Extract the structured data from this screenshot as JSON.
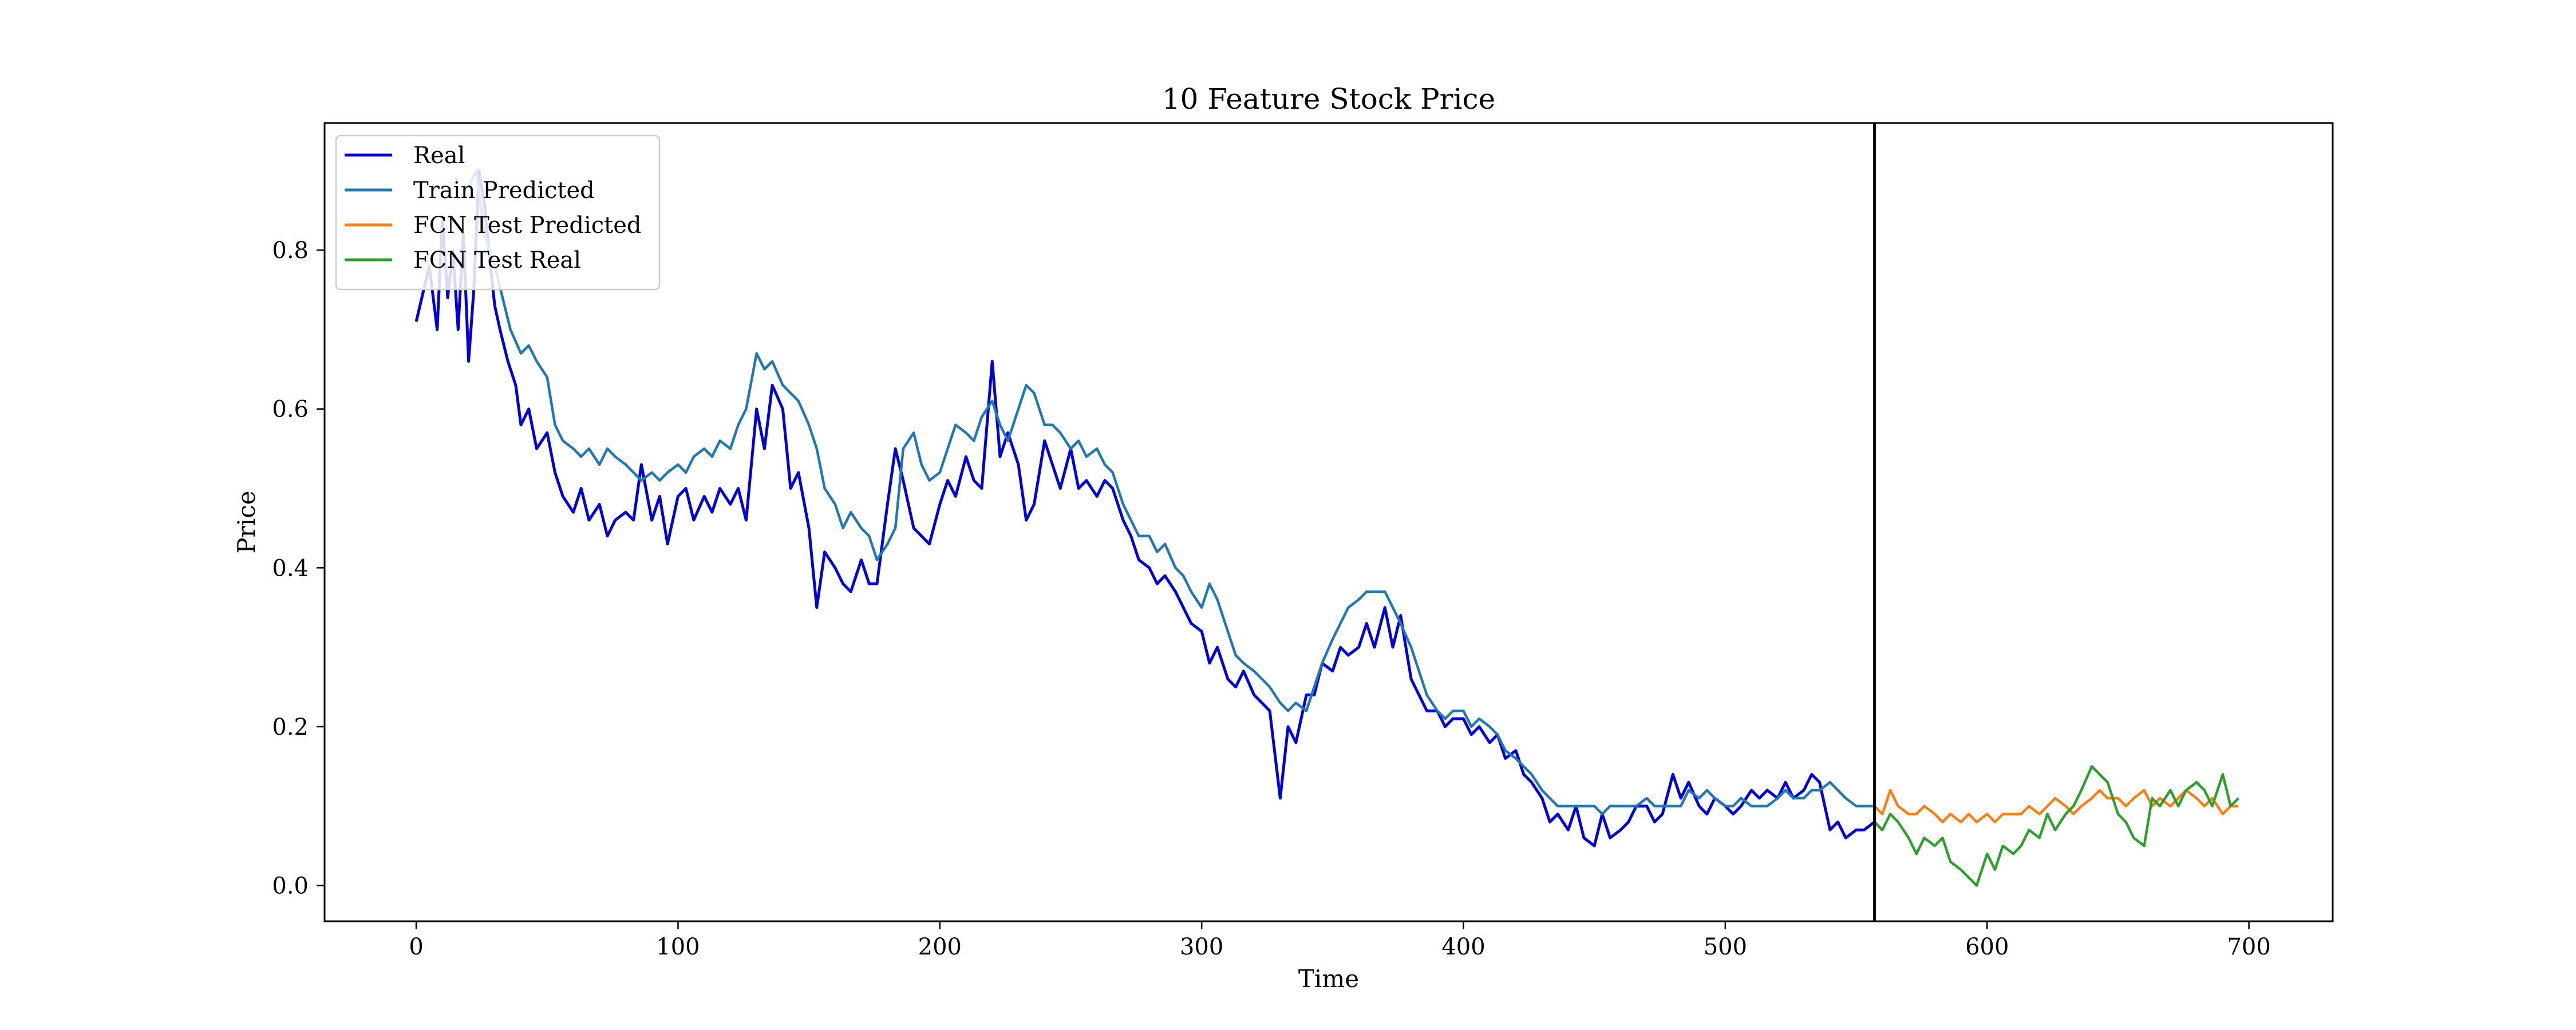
{
  "chart_data": {
    "type": "line",
    "title": "10 Feature Stock Price",
    "xlabel": "Time",
    "ylabel": "Price",
    "xlim": [
      -35,
      732
    ],
    "ylim": [
      -0.045,
      0.96
    ],
    "xticks": [
      0,
      100,
      200,
      300,
      400,
      500,
      600,
      700
    ],
    "yticks": [
      0.0,
      0.2,
      0.4,
      0.6,
      0.8
    ],
    "ytick_labels": [
      "0.0",
      "0.2",
      "0.4",
      "0.6",
      "0.8"
    ],
    "vline_x": 557,
    "legend": {
      "position": "top-left"
    },
    "grid": false,
    "series": [
      {
        "name": "Real",
        "color": "#0000dd",
        "x": [
          0,
          5,
          8,
          10,
          12,
          14,
          16,
          18,
          20,
          22,
          24,
          26,
          28,
          30,
          32,
          35,
          38,
          40,
          43,
          46,
          50,
          53,
          56,
          60,
          63,
          66,
          70,
          73,
          76,
          80,
          83,
          86,
          90,
          93,
          96,
          100,
          103,
          106,
          110,
          113,
          116,
          120,
          123,
          126,
          130,
          133,
          136,
          140,
          143,
          146,
          150,
          153,
          156,
          160,
          163,
          166,
          170,
          173,
          176,
          180,
          183,
          186,
          190,
          193,
          196,
          200,
          203,
          206,
          210,
          213,
          216,
          220,
          223,
          226,
          230,
          233,
          236,
          240,
          243,
          246,
          250,
          253,
          256,
          260,
          263,
          266,
          270,
          273,
          276,
          280,
          283,
          286,
          290,
          293,
          296,
          300,
          303,
          306,
          310,
          313,
          316,
          320,
          323,
          326,
          330,
          333,
          336,
          340,
          343,
          346,
          350,
          353,
          356,
          360,
          363,
          366,
          370,
          373,
          376,
          380,
          383,
          386,
          390,
          393,
          396,
          400,
          403,
          406,
          410,
          413,
          416,
          420,
          423,
          426,
          430,
          433,
          436,
          440,
          443,
          446,
          450,
          453,
          456,
          460,
          463,
          466,
          470,
          473,
          476,
          480,
          483,
          486,
          490,
          493,
          496,
          500,
          503,
          506,
          510,
          513,
          516,
          520,
          523,
          526,
          530,
          533,
          536,
          540,
          543,
          546,
          550,
          553,
          557
        ],
        "y": [
          0.71,
          0.78,
          0.7,
          0.84,
          0.74,
          0.8,
          0.7,
          0.82,
          0.66,
          0.75,
          0.9,
          0.86,
          0.79,
          0.73,
          0.7,
          0.66,
          0.63,
          0.58,
          0.6,
          0.55,
          0.57,
          0.52,
          0.49,
          0.47,
          0.5,
          0.46,
          0.48,
          0.44,
          0.46,
          0.47,
          0.46,
          0.53,
          0.46,
          0.49,
          0.43,
          0.49,
          0.5,
          0.46,
          0.49,
          0.47,
          0.5,
          0.48,
          0.5,
          0.46,
          0.6,
          0.55,
          0.63,
          0.6,
          0.5,
          0.52,
          0.45,
          0.35,
          0.42,
          0.4,
          0.38,
          0.37,
          0.41,
          0.38,
          0.38,
          0.48,
          0.55,
          0.51,
          0.45,
          0.44,
          0.43,
          0.48,
          0.51,
          0.49,
          0.54,
          0.51,
          0.5,
          0.66,
          0.54,
          0.57,
          0.53,
          0.46,
          0.48,
          0.56,
          0.53,
          0.5,
          0.55,
          0.5,
          0.51,
          0.49,
          0.51,
          0.5,
          0.46,
          0.44,
          0.41,
          0.4,
          0.38,
          0.39,
          0.37,
          0.35,
          0.33,
          0.32,
          0.28,
          0.3,
          0.26,
          0.25,
          0.27,
          0.24,
          0.23,
          0.22,
          0.11,
          0.2,
          0.18,
          0.24,
          0.24,
          0.28,
          0.27,
          0.3,
          0.29,
          0.3,
          0.33,
          0.3,
          0.35,
          0.3,
          0.34,
          0.26,
          0.24,
          0.22,
          0.22,
          0.2,
          0.21,
          0.21,
          0.19,
          0.2,
          0.18,
          0.19,
          0.16,
          0.17,
          0.14,
          0.13,
          0.11,
          0.08,
          0.09,
          0.07,
          0.1,
          0.06,
          0.05,
          0.09,
          0.06,
          0.07,
          0.08,
          0.1,
          0.1,
          0.08,
          0.09,
          0.14,
          0.11,
          0.13,
          0.1,
          0.09,
          0.11,
          0.1,
          0.09,
          0.1,
          0.12,
          0.11,
          0.12,
          0.11,
          0.13,
          0.11,
          0.12,
          0.14,
          0.13,
          0.07,
          0.08,
          0.06,
          0.07,
          0.07,
          0.08
        ]
      },
      {
        "name": "Train Predicted",
        "color": "#1f77b4",
        "x": [
          20,
          23,
          26,
          30,
          33,
          36,
          40,
          43,
          46,
          50,
          53,
          56,
          60,
          63,
          66,
          70,
          73,
          76,
          80,
          83,
          86,
          90,
          93,
          96,
          100,
          103,
          106,
          110,
          113,
          116,
          120,
          123,
          126,
          130,
          133,
          136,
          140,
          143,
          146,
          150,
          153,
          156,
          160,
          163,
          166,
          170,
          173,
          176,
          180,
          183,
          186,
          190,
          193,
          196,
          200,
          203,
          206,
          210,
          213,
          216,
          220,
          223,
          226,
          230,
          233,
          236,
          240,
          243,
          246,
          250,
          253,
          256,
          260,
          263,
          266,
          270,
          273,
          276,
          280,
          283,
          286,
          290,
          293,
          296,
          300,
          303,
          306,
          310,
          313,
          316,
          320,
          323,
          326,
          330,
          333,
          336,
          340,
          343,
          346,
          350,
          353,
          356,
          360,
          363,
          366,
          370,
          373,
          376,
          380,
          383,
          386,
          390,
          393,
          396,
          400,
          403,
          406,
          410,
          413,
          416,
          420,
          423,
          426,
          430,
          433,
          436,
          440,
          443,
          446,
          450,
          453,
          456,
          460,
          463,
          466,
          470,
          473,
          476,
          480,
          483,
          486,
          490,
          493,
          496,
          500,
          503,
          506,
          510,
          513,
          516,
          520,
          523,
          526,
          530,
          533,
          536,
          540,
          543,
          546,
          550,
          553,
          557
        ],
        "y": [
          0.88,
          0.9,
          0.82,
          0.78,
          0.74,
          0.7,
          0.67,
          0.68,
          0.66,
          0.64,
          0.58,
          0.56,
          0.55,
          0.54,
          0.55,
          0.53,
          0.55,
          0.54,
          0.53,
          0.52,
          0.51,
          0.52,
          0.51,
          0.52,
          0.53,
          0.52,
          0.54,
          0.55,
          0.54,
          0.56,
          0.55,
          0.58,
          0.6,
          0.67,
          0.65,
          0.66,
          0.63,
          0.62,
          0.61,
          0.58,
          0.55,
          0.5,
          0.48,
          0.45,
          0.47,
          0.45,
          0.44,
          0.41,
          0.43,
          0.45,
          0.55,
          0.57,
          0.53,
          0.51,
          0.52,
          0.55,
          0.58,
          0.57,
          0.56,
          0.59,
          0.61,
          0.58,
          0.56,
          0.6,
          0.63,
          0.62,
          0.58,
          0.58,
          0.57,
          0.55,
          0.56,
          0.54,
          0.55,
          0.53,
          0.52,
          0.48,
          0.46,
          0.44,
          0.44,
          0.42,
          0.43,
          0.4,
          0.39,
          0.37,
          0.35,
          0.38,
          0.36,
          0.32,
          0.29,
          0.28,
          0.27,
          0.26,
          0.25,
          0.23,
          0.22,
          0.23,
          0.22,
          0.25,
          0.28,
          0.31,
          0.33,
          0.35,
          0.36,
          0.37,
          0.37,
          0.37,
          0.35,
          0.33,
          0.3,
          0.27,
          0.24,
          0.22,
          0.21,
          0.22,
          0.22,
          0.2,
          0.21,
          0.2,
          0.19,
          0.17,
          0.16,
          0.15,
          0.14,
          0.12,
          0.11,
          0.1,
          0.1,
          0.1,
          0.1,
          0.1,
          0.09,
          0.1,
          0.1,
          0.1,
          0.1,
          0.11,
          0.1,
          0.1,
          0.1,
          0.1,
          0.12,
          0.11,
          0.12,
          0.11,
          0.1,
          0.1,
          0.11,
          0.1,
          0.1,
          0.1,
          0.11,
          0.12,
          0.11,
          0.11,
          0.12,
          0.12,
          0.13,
          0.12,
          0.11,
          0.1,
          0.1,
          0.1
        ]
      },
      {
        "name": "FCN Test Predicted",
        "color": "#ff7f0e",
        "x": [
          557,
          560,
          563,
          566,
          570,
          573,
          576,
          580,
          583,
          586,
          590,
          593,
          596,
          600,
          603,
          606,
          610,
          613,
          616,
          620,
          623,
          626,
          630,
          633,
          636,
          640,
          643,
          646,
          650,
          653,
          656,
          660,
          663,
          666,
          670,
          673,
          676,
          680,
          683,
          686,
          690,
          693,
          696
        ],
        "y": [
          0.1,
          0.09,
          0.12,
          0.1,
          0.09,
          0.09,
          0.1,
          0.09,
          0.08,
          0.09,
          0.08,
          0.09,
          0.08,
          0.09,
          0.08,
          0.09,
          0.09,
          0.09,
          0.1,
          0.09,
          0.1,
          0.11,
          0.1,
          0.09,
          0.1,
          0.11,
          0.12,
          0.11,
          0.11,
          0.1,
          0.11,
          0.12,
          0.1,
          0.11,
          0.1,
          0.11,
          0.12,
          0.11,
          0.1,
          0.11,
          0.09,
          0.1,
          0.1
        ]
      },
      {
        "name": "FCN Test Real",
        "color": "#2ca02c",
        "x": [
          557,
          560,
          563,
          566,
          570,
          573,
          576,
          580,
          583,
          586,
          590,
          593,
          596,
          600,
          603,
          606,
          610,
          613,
          616,
          620,
          623,
          626,
          630,
          633,
          636,
          640,
          643,
          646,
          650,
          653,
          656,
          660,
          663,
          666,
          670,
          673,
          676,
          680,
          683,
          686,
          690,
          693,
          696
        ],
        "y": [
          0.08,
          0.07,
          0.09,
          0.08,
          0.06,
          0.04,
          0.06,
          0.05,
          0.06,
          0.03,
          0.02,
          0.01,
          0.0,
          0.04,
          0.02,
          0.05,
          0.04,
          0.05,
          0.07,
          0.06,
          0.09,
          0.07,
          0.09,
          0.1,
          0.12,
          0.15,
          0.14,
          0.13,
          0.09,
          0.08,
          0.06,
          0.05,
          0.11,
          0.1,
          0.12,
          0.1,
          0.12,
          0.13,
          0.12,
          0.1,
          0.14,
          0.1,
          0.11
        ]
      }
    ]
  }
}
